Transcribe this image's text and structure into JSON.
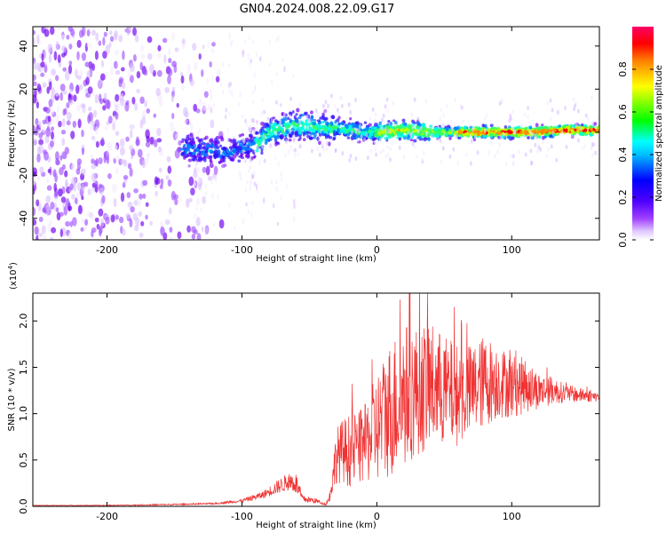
{
  "figure_title": "GN04.2024.008.22.09.G17",
  "chart_data": [
    {
      "type": "heatmap",
      "panel": "top",
      "xlabel": "Height of straight line (km)",
      "ylabel": "Frequency (Hz)",
      "xlim": [
        -255,
        165
      ],
      "ylim": [
        -50,
        49
      ],
      "xticks": [
        -200,
        -100,
        0,
        100
      ],
      "xtick_labels": [
        "-200",
        "-100",
        "0",
        "100"
      ],
      "yticks": [
        -40,
        -20,
        0,
        20,
        40
      ],
      "ytick_labels": [
        "-40",
        "-20",
        "0",
        "20",
        "40"
      ],
      "colorbar": {
        "label": "Normalized spectral amplitude",
        "range": [
          0.0,
          1.0
        ],
        "ticks": [
          0.0,
          0.2,
          0.4,
          0.6,
          0.8
        ],
        "tick_labels": [
          "0.0",
          "0.2",
          "0.4",
          "0.6",
          "0.8"
        ],
        "colormap": [
          "#ffffff",
          "#e0c8ff",
          "#7a00e6",
          "#3c00ff",
          "#0000ff",
          "#00ffff",
          "#00ff00",
          "#ffff00",
          "#ff0000",
          "#ff0066"
        ]
      },
      "ridge": {
        "x": [
          -145,
          -120,
          -110,
          -100,
          -90,
          -80,
          -70,
          -60,
          -50,
          -40,
          -30,
          -20,
          -10,
          0,
          20,
          40,
          60,
          80,
          100,
          120,
          140,
          165
        ],
        "freq": [
          -8,
          -8,
          -10,
          -7,
          -6,
          0,
          2,
          3,
          3,
          2,
          2,
          1,
          0,
          0,
          1,
          0,
          0,
          0,
          0,
          0,
          1,
          1
        ]
      }
    },
    {
      "type": "line",
      "panel": "bottom",
      "xlabel": "Height of straight line (km)",
      "ylabel": "SNR (10 * v/v)",
      "scale_label": "(x10",
      "scale_exp": "4",
      "xlim": [
        -255,
        165
      ],
      "ylim": [
        0,
        2.3
      ],
      "xticks": [
        -200,
        -100,
        0,
        100
      ],
      "xtick_labels": [
        "-200",
        "-100",
        "0",
        "100"
      ],
      "yticks": [
        0.0,
        0.5,
        1.0,
        1.5,
        2.0
      ],
      "ytick_labels": [
        "0.0",
        "0.5",
        "1.0",
        "1.5",
        "2.0"
      ],
      "color": "#f03232",
      "envelope": {
        "x": [
          -255,
          -200,
          -150,
          -120,
          -100,
          -85,
          -75,
          -65,
          -60,
          -55,
          -45,
          -38,
          -35,
          -30,
          -25,
          -20,
          -10,
          0,
          10,
          20,
          30,
          40,
          50,
          60,
          70,
          80,
          90,
          100,
          110,
          120,
          130,
          140,
          150,
          165
        ],
        "center": [
          0.01,
          0.01,
          0.02,
          0.03,
          0.06,
          0.12,
          0.2,
          0.27,
          0.25,
          0.08,
          0.06,
          0.02,
          0.1,
          0.55,
          0.6,
          0.6,
          0.65,
          0.85,
          1.05,
          1.2,
          1.25,
          1.3,
          1.25,
          1.2,
          1.25,
          1.35,
          1.35,
          1.3,
          1.3,
          1.25,
          1.25,
          1.22,
          1.2,
          1.18
        ],
        "spread": [
          0.003,
          0.005,
          0.008,
          0.01,
          0.02,
          0.04,
          0.07,
          0.1,
          0.12,
          0.04,
          0.03,
          0.01,
          0.06,
          0.3,
          0.35,
          0.4,
          0.4,
          0.6,
          0.75,
          0.8,
          0.7,
          0.7,
          0.6,
          0.55,
          0.5,
          0.5,
          0.4,
          0.35,
          0.3,
          0.2,
          0.15,
          0.1,
          0.08,
          0.05
        ]
      }
    }
  ]
}
